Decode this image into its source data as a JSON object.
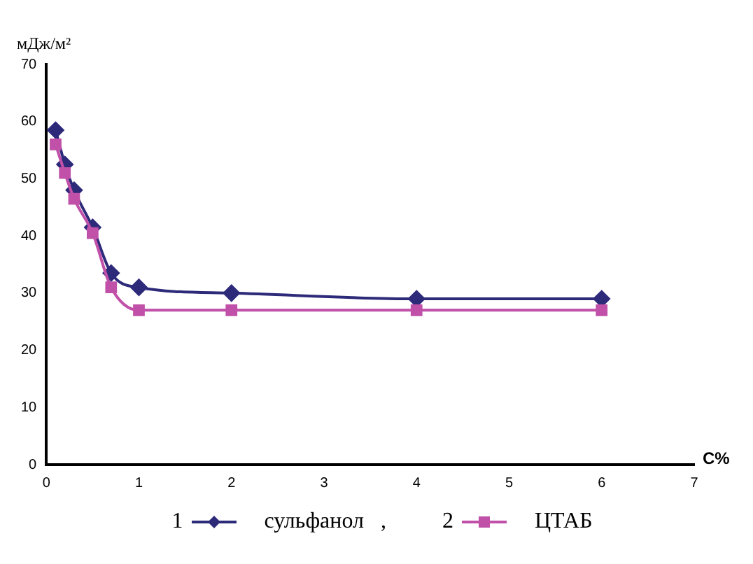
{
  "chart_data": {
    "type": "line",
    "ylabel": "мДж/м²",
    "xlabel": "С%",
    "xlim": [
      0,
      7
    ],
    "xticks": [
      0,
      1,
      2,
      3,
      4,
      5,
      6,
      7
    ],
    "ylim": [
      0,
      70
    ],
    "yticks": [
      0,
      10,
      20,
      30,
      40,
      50,
      60,
      70
    ],
    "grid": false,
    "legend": "bottom",
    "annotations": [
      "1",
      "2",
      ","
    ],
    "series": [
      {
        "name": "сульфанол",
        "color": "#2e2a7a",
        "marker": "diamond",
        "x": [
          0.1,
          0.2,
          0.3,
          0.5,
          0.7,
          1,
          2,
          4,
          6
        ],
        "values": [
          58.5,
          52.5,
          48,
          41.5,
          33.5,
          31,
          30,
          29,
          29
        ]
      },
      {
        "name": "ЦТАБ",
        "color": "#c050a8",
        "marker": "square",
        "x": [
          0.1,
          0.2,
          0.3,
          0.5,
          0.7,
          1,
          2,
          4,
          6
        ],
        "values": [
          56,
          51,
          46.5,
          40.5,
          31,
          27,
          27,
          27,
          27
        ]
      }
    ]
  }
}
